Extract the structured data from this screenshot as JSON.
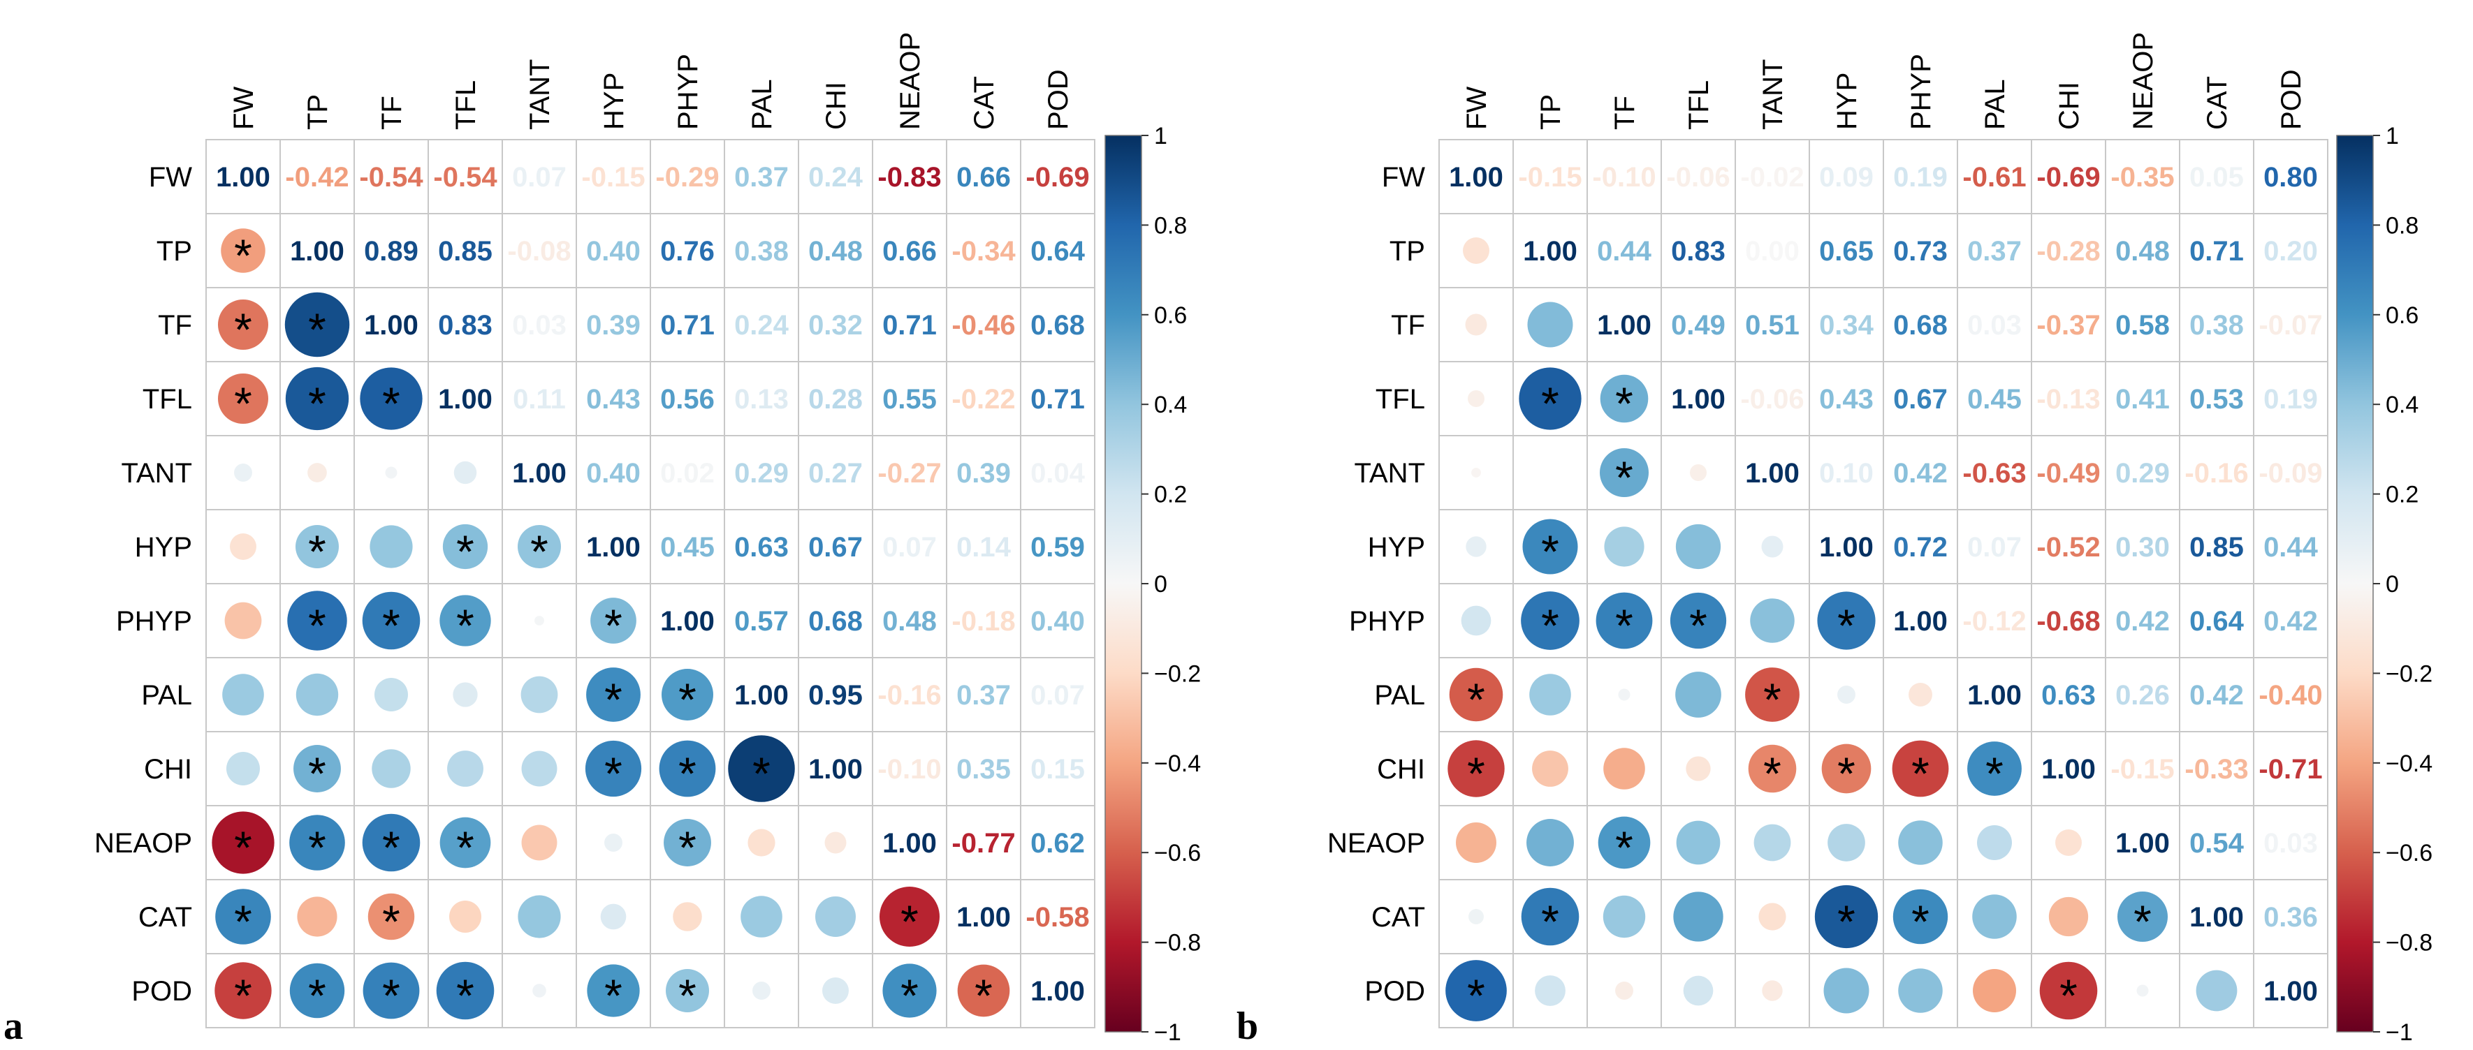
{
  "chart_data": [
    {
      "type": "heatmap",
      "subtype": "correlation-matrix (lower: circles with significance stars, upper: numeric coefficients)",
      "panel": "a",
      "variables": [
        "FW",
        "TP",
        "TF",
        "TFL",
        "TANT",
        "HYP",
        "PHYP",
        "PAL",
        "CHI",
        "NEAOP",
        "CAT",
        "POD"
      ],
      "upper_values": [
        [
          1.0,
          -0.42,
          -0.54,
          -0.54,
          0.07,
          -0.15,
          -0.29,
          0.37,
          0.24,
          -0.83,
          0.66,
          -0.69
        ],
        [
          null,
          1.0,
          0.89,
          0.85,
          -0.08,
          0.4,
          0.76,
          0.38,
          0.48,
          0.66,
          -0.34,
          0.64
        ],
        [
          null,
          null,
          1.0,
          0.83,
          0.03,
          0.39,
          0.71,
          0.24,
          0.32,
          0.71,
          -0.46,
          0.68
        ],
        [
          null,
          null,
          null,
          1.0,
          0.11,
          0.43,
          0.56,
          0.13,
          0.28,
          0.55,
          -0.22,
          0.71
        ],
        [
          null,
          null,
          null,
          null,
          1.0,
          0.4,
          0.02,
          0.29,
          0.27,
          -0.27,
          0.39,
          0.04
        ],
        [
          null,
          null,
          null,
          null,
          null,
          1.0,
          0.45,
          0.63,
          0.67,
          0.07,
          0.14,
          0.59
        ],
        [
          null,
          null,
          null,
          null,
          null,
          null,
          1.0,
          0.57,
          0.68,
          0.48,
          -0.18,
          0.4
        ],
        [
          null,
          null,
          null,
          null,
          null,
          null,
          null,
          1.0,
          0.95,
          -0.16,
          0.37,
          0.07
        ],
        [
          null,
          null,
          null,
          null,
          null,
          null,
          null,
          null,
          1.0,
          -0.1,
          0.35,
          0.15
        ],
        [
          null,
          null,
          null,
          null,
          null,
          null,
          null,
          null,
          null,
          1.0,
          -0.77,
          0.62
        ],
        [
          null,
          null,
          null,
          null,
          null,
          null,
          null,
          null,
          null,
          null,
          1.0,
          -0.58
        ],
        [
          null,
          null,
          null,
          null,
          null,
          null,
          null,
          null,
          null,
          null,
          null,
          1.0
        ]
      ],
      "significance_stars": [
        [
          1,
          0
        ],
        [
          2,
          0
        ],
        [
          2,
          1
        ],
        [
          3,
          0
        ],
        [
          3,
          1
        ],
        [
          3,
          2
        ],
        [
          5,
          1
        ],
        [
          5,
          3
        ],
        [
          5,
          4
        ],
        [
          6,
          1
        ],
        [
          6,
          2
        ],
        [
          6,
          3
        ],
        [
          6,
          5
        ],
        [
          7,
          5
        ],
        [
          7,
          6
        ],
        [
          8,
          1
        ],
        [
          8,
          5
        ],
        [
          8,
          6
        ],
        [
          8,
          7
        ],
        [
          9,
          0
        ],
        [
          9,
          1
        ],
        [
          9,
          2
        ],
        [
          9,
          3
        ],
        [
          9,
          6
        ],
        [
          10,
          0
        ],
        [
          10,
          2
        ],
        [
          10,
          9
        ],
        [
          11,
          0
        ],
        [
          11,
          1
        ],
        [
          11,
          2
        ],
        [
          11,
          3
        ],
        [
          11,
          5
        ],
        [
          11,
          6
        ],
        [
          11,
          9
        ],
        [
          11,
          10
        ]
      ],
      "star_symbol": "*",
      "colorbar": {
        "min": -1,
        "max": 1,
        "ticks": [
          "1",
          "0.8",
          "0.6",
          "0.4",
          "0.2",
          "0",
          "−0.2",
          "−0.4",
          "−0.6",
          "−0.8",
          "−1"
        ]
      }
    },
    {
      "type": "heatmap",
      "subtype": "correlation-matrix (lower: circles with significance stars, upper: numeric coefficients)",
      "panel": "b",
      "variables": [
        "FW",
        "TP",
        "TF",
        "TFL",
        "TANT",
        "HYP",
        "PHYP",
        "PAL",
        "CHI",
        "NEAOP",
        "CAT",
        "POD"
      ],
      "upper_values": [
        [
          1.0,
          -0.15,
          -0.1,
          -0.06,
          -0.02,
          0.09,
          0.19,
          -0.61,
          -0.69,
          -0.35,
          0.05,
          0.8
        ],
        [
          null,
          1.0,
          0.44,
          0.83,
          0.0,
          0.65,
          0.73,
          0.37,
          -0.28,
          0.48,
          0.71,
          0.2
        ],
        [
          null,
          null,
          1.0,
          0.49,
          0.51,
          0.34,
          0.68,
          0.03,
          -0.37,
          0.58,
          0.38,
          -0.07
        ],
        [
          null,
          null,
          null,
          1.0,
          -0.06,
          0.43,
          0.67,
          0.45,
          -0.13,
          0.41,
          0.53,
          0.19
        ],
        [
          null,
          null,
          null,
          null,
          1.0,
          0.1,
          0.42,
          -0.63,
          -0.49,
          0.29,
          -0.16,
          -0.09
        ],
        [
          null,
          null,
          null,
          null,
          null,
          1.0,
          0.72,
          0.07,
          -0.52,
          0.3,
          0.85,
          0.44
        ],
        [
          null,
          null,
          null,
          null,
          null,
          null,
          1.0,
          -0.12,
          -0.68,
          0.42,
          0.64,
          0.42
        ],
        [
          null,
          null,
          null,
          null,
          null,
          null,
          null,
          1.0,
          0.63,
          0.26,
          0.42,
          -0.4
        ],
        [
          null,
          null,
          null,
          null,
          null,
          null,
          null,
          null,
          1.0,
          -0.15,
          -0.33,
          -0.71
        ],
        [
          null,
          null,
          null,
          null,
          null,
          null,
          null,
          null,
          null,
          1.0,
          0.54,
          0.03
        ],
        [
          null,
          null,
          null,
          null,
          null,
          null,
          null,
          null,
          null,
          null,
          1.0,
          0.36
        ],
        [
          null,
          null,
          null,
          null,
          null,
          null,
          null,
          null,
          null,
          null,
          null,
          1.0
        ]
      ],
      "significance_stars": [
        [
          3,
          1
        ],
        [
          3,
          2
        ],
        [
          4,
          2
        ],
        [
          5,
          1
        ],
        [
          6,
          1
        ],
        [
          6,
          2
        ],
        [
          6,
          3
        ],
        [
          6,
          5
        ],
        [
          7,
          0
        ],
        [
          7,
          4
        ],
        [
          8,
          0
        ],
        [
          8,
          4
        ],
        [
          8,
          5
        ],
        [
          8,
          6
        ],
        [
          8,
          7
        ],
        [
          9,
          2
        ],
        [
          10,
          1
        ],
        [
          10,
          5
        ],
        [
          10,
          6
        ],
        [
          10,
          9
        ],
        [
          11,
          0
        ],
        [
          11,
          8
        ]
      ],
      "star_symbol": "*",
      "colorbar": {
        "min": -1,
        "max": 1,
        "ticks": [
          "1",
          "0.8",
          "0.6",
          "0.4",
          "0.2",
          "0",
          "−0.2",
          "−0.4",
          "−0.6",
          "−0.8",
          "−1"
        ]
      }
    }
  ]
}
